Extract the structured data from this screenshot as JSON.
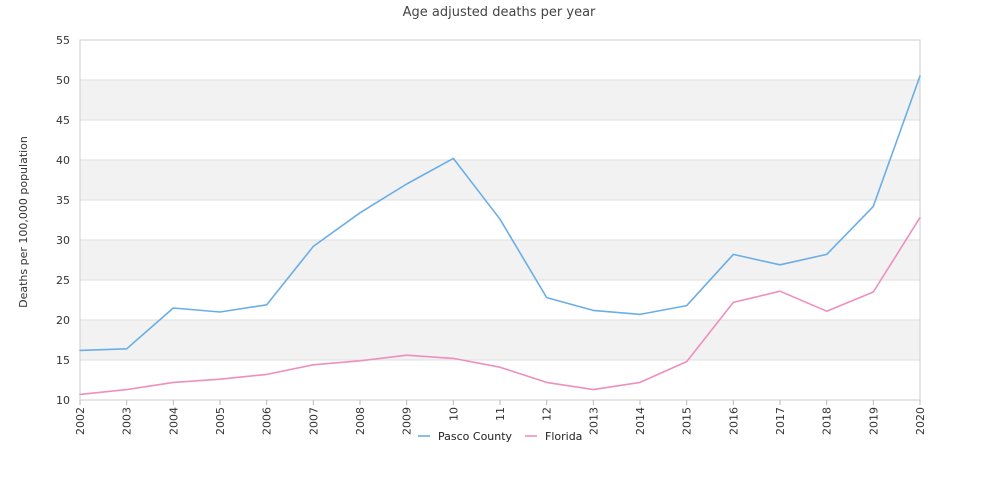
{
  "chart_data": {
    "type": "line",
    "title": "Age adjusted deaths per year",
    "xlabel": "",
    "ylabel": "Deaths per 100,000 population",
    "ylim": [
      10,
      55
    ],
    "y_ticks": [
      10,
      15,
      20,
      25,
      30,
      35,
      40,
      45,
      50,
      55
    ],
    "x": [
      2002,
      2003,
      2004,
      2005,
      2006,
      2007,
      2008,
      2009,
      2010,
      2011,
      2012,
      2013,
      2014,
      2015,
      2016,
      2017,
      2018,
      2019,
      2020
    ],
    "x_tick_labels": [
      "2002",
      "2003",
      "2004",
      "2005",
      "2006",
      "2007",
      "2008",
      "2009",
      "10",
      "11",
      "12",
      "2013",
      "2014",
      "2015",
      "2016",
      "2017",
      "2018",
      "2019",
      "2020"
    ],
    "grid": "alternating horizontal bands",
    "legend_position": "bottom-center",
    "series": [
      {
        "name": "Pasco County",
        "color": "#6aaee8",
        "values": [
          16.2,
          16.4,
          21.5,
          21.0,
          21.9,
          29.2,
          33.4,
          37.0,
          40.2,
          32.6,
          22.8,
          21.2,
          20.7,
          21.8,
          28.2,
          26.9,
          28.2,
          34.2,
          50.5
        ]
      },
      {
        "name": "Florida",
        "color": "#ee8fbd",
        "values": [
          10.7,
          11.3,
          12.2,
          12.6,
          13.2,
          14.4,
          14.9,
          15.6,
          15.2,
          14.1,
          12.2,
          11.3,
          12.2,
          14.8,
          22.2,
          23.6,
          21.1,
          23.5,
          32.8
        ]
      }
    ]
  }
}
